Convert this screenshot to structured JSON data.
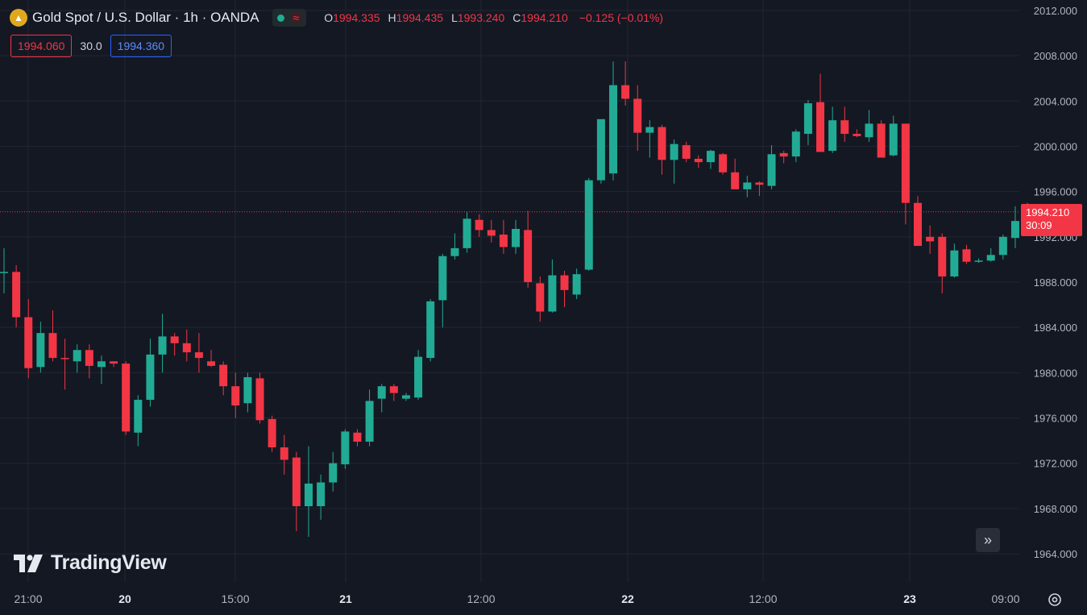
{
  "header": {
    "symbol_icon": "gold-bars-icon",
    "title": "Gold Spot / U.S. Dollar · 1h · OANDA",
    "status_icon": "market-open-dot-icon",
    "approx_icon": "approx-icon",
    "o_label": "O",
    "o_value": "1994.335",
    "h_label": "H",
    "h_value": "1994.435",
    "l_label": "L",
    "l_value": "1993.240",
    "c_label": "C",
    "c_value": "1994.210",
    "change": "−0.125 (−0.01%)"
  },
  "trade": {
    "sell": "1994.060",
    "spread": "30.0",
    "buy": "1994.360"
  },
  "price_tag": {
    "price": "1994.210",
    "countdown": "30:09"
  },
  "brand": {
    "name": "TradingView"
  },
  "colors": {
    "up": "#22ab94",
    "down": "#f23645",
    "background": "#141823",
    "grid": "#222632",
    "axis_text": "#b2b5be"
  },
  "chart_data": {
    "type": "candlestick",
    "title": "Gold Spot / U.S. Dollar · 1h · OANDA",
    "y_range": [
      1962.0,
      2013.0
    ],
    "y_ticks": [
      "2012.000",
      "2008.000",
      "2004.000",
      "2000.000",
      "1996.000",
      "1992.000",
      "1988.000",
      "1984.000",
      "1980.000",
      "1976.000",
      "1972.000",
      "1968.000",
      "1964.000"
    ],
    "x_ticks": [
      "21:00",
      "20",
      "15:00",
      "21",
      "12:00",
      "22",
      "12:00",
      "23",
      "09:00"
    ],
    "bold_x_ticks": [
      "20",
      "21",
      "22",
      "23"
    ],
    "last_price": 1994.21,
    "candles": [
      {
        "o": 1988.9,
        "h": 1991.0,
        "l": 1987.0,
        "c": 1988.9
      },
      {
        "o": 1988.9,
        "h": 1989.5,
        "l": 1984.0,
        "c": 1984.9
      },
      {
        "o": 1984.9,
        "h": 1986.5,
        "l": 1979.5,
        "c": 1980.4
      },
      {
        "o": 1980.5,
        "h": 1984.5,
        "l": 1980.0,
        "c": 1983.5
      },
      {
        "o": 1983.5,
        "h": 1985.5,
        "l": 1981.0,
        "c": 1981.3
      },
      {
        "o": 1981.3,
        "h": 1983.0,
        "l": 1978.5,
        "c": 1981.2
      },
      {
        "o": 1981.0,
        "h": 1982.5,
        "l": 1980.0,
        "c": 1982.0
      },
      {
        "o": 1982.0,
        "h": 1982.5,
        "l": 1979.5,
        "c": 1980.6
      },
      {
        "o": 1980.5,
        "h": 1981.5,
        "l": 1979.0,
        "c": 1981.0
      },
      {
        "o": 1981.0,
        "h": 1981.0,
        "l": 1980.5,
        "c": 1980.8
      },
      {
        "o": 1980.8,
        "h": 1981.0,
        "l": 1974.5,
        "c": 1974.8
      },
      {
        "o": 1974.7,
        "h": 1978.0,
        "l": 1973.5,
        "c": 1977.6
      },
      {
        "o": 1977.6,
        "h": 1983.0,
        "l": 1977.0,
        "c": 1981.6
      },
      {
        "o": 1981.6,
        "h": 1985.2,
        "l": 1980.0,
        "c": 1983.2
      },
      {
        "o": 1983.2,
        "h": 1983.5,
        "l": 1981.5,
        "c": 1982.6
      },
      {
        "o": 1982.6,
        "h": 1983.8,
        "l": 1981.0,
        "c": 1981.8
      },
      {
        "o": 1981.8,
        "h": 1983.5,
        "l": 1980.0,
        "c": 1981.3
      },
      {
        "o": 1981.0,
        "h": 1982.0,
        "l": 1980.5,
        "c": 1980.6
      },
      {
        "o": 1980.7,
        "h": 1981.0,
        "l": 1978.0,
        "c": 1978.8
      },
      {
        "o": 1978.8,
        "h": 1980.0,
        "l": 1976.0,
        "c": 1977.1
      },
      {
        "o": 1977.3,
        "h": 1980.0,
        "l": 1976.5,
        "c": 1979.6
      },
      {
        "o": 1979.5,
        "h": 1980.0,
        "l": 1975.5,
        "c": 1975.8
      },
      {
        "o": 1975.9,
        "h": 1976.2,
        "l": 1973.0,
        "c": 1973.4
      },
      {
        "o": 1973.4,
        "h": 1974.5,
        "l": 1971.0,
        "c": 1972.3
      },
      {
        "o": 1972.5,
        "h": 1973.0,
        "l": 1966.0,
        "c": 1968.2
      },
      {
        "o": 1968.2,
        "h": 1973.5,
        "l": 1965.5,
        "c": 1970.2
      },
      {
        "o": 1968.2,
        "h": 1971.0,
        "l": 1967.0,
        "c": 1970.3
      },
      {
        "o": 1970.3,
        "h": 1973.0,
        "l": 1969.5,
        "c": 1972.0
      },
      {
        "o": 1971.9,
        "h": 1975.0,
        "l": 1971.5,
        "c": 1974.8
      },
      {
        "o": 1974.7,
        "h": 1975.0,
        "l": 1973.5,
        "c": 1973.9
      },
      {
        "o": 1973.9,
        "h": 1978.5,
        "l": 1973.5,
        "c": 1977.5
      },
      {
        "o": 1977.7,
        "h": 1979.0,
        "l": 1976.5,
        "c": 1978.8
      },
      {
        "o": 1978.8,
        "h": 1979.0,
        "l": 1977.5,
        "c": 1978.2
      },
      {
        "o": 1977.7,
        "h": 1978.2,
        "l": 1977.5,
        "c": 1978.0
      },
      {
        "o": 1977.8,
        "h": 1982.0,
        "l": 1977.6,
        "c": 1981.4
      },
      {
        "o": 1981.3,
        "h": 1986.5,
        "l": 1981.0,
        "c": 1986.3
      },
      {
        "o": 1986.4,
        "h": 1990.5,
        "l": 1984.0,
        "c": 1990.3
      },
      {
        "o": 1990.3,
        "h": 1992.3,
        "l": 1990.0,
        "c": 1991.0
      },
      {
        "o": 1991.0,
        "h": 1994.2,
        "l": 1990.6,
        "c": 1993.6
      },
      {
        "o": 1993.5,
        "h": 1994.0,
        "l": 1992.0,
        "c": 1992.6
      },
      {
        "o": 1992.6,
        "h": 1993.5,
        "l": 1991.5,
        "c": 1992.1
      },
      {
        "o": 1992.2,
        "h": 1993.5,
        "l": 1990.5,
        "c": 1991.1
      },
      {
        "o": 1991.1,
        "h": 1993.5,
        "l": 1990.5,
        "c": 1992.7
      },
      {
        "o": 1992.6,
        "h": 1994.3,
        "l": 1987.5,
        "c": 1988.0
      },
      {
        "o": 1987.9,
        "h": 1988.5,
        "l": 1984.5,
        "c": 1985.4
      },
      {
        "o": 1985.4,
        "h": 1990.0,
        "l": 1985.3,
        "c": 1988.6
      },
      {
        "o": 1988.6,
        "h": 1989.0,
        "l": 1985.8,
        "c": 1987.3
      },
      {
        "o": 1986.9,
        "h": 1989.2,
        "l": 1986.5,
        "c": 1988.7
      },
      {
        "o": 1989.1,
        "h": 1997.2,
        "l": 1989.0,
        "c": 1997.0
      },
      {
        "o": 1997.0,
        "h": 2002.2,
        "l": 1996.7,
        "c": 2002.4
      },
      {
        "o": 1997.6,
        "h": 2007.5,
        "l": 1997.0,
        "c": 2005.4
      },
      {
        "o": 2005.4,
        "h": 2007.5,
        "l": 2003.6,
        "c": 2004.2
      },
      {
        "o": 2004.2,
        "h": 2005.4,
        "l": 1999.6,
        "c": 2001.2
      },
      {
        "o": 2001.2,
        "h": 2002.3,
        "l": 1999.0,
        "c": 2001.7
      },
      {
        "o": 2001.7,
        "h": 2001.9,
        "l": 1997.5,
        "c": 1998.8
      },
      {
        "o": 1998.8,
        "h": 2000.6,
        "l": 1996.7,
        "c": 2000.2
      },
      {
        "o": 2000.1,
        "h": 2000.4,
        "l": 1998.6,
        "c": 1998.9
      },
      {
        "o": 1998.9,
        "h": 1999.2,
        "l": 1998.1,
        "c": 1998.6
      },
      {
        "o": 1998.6,
        "h": 1999.7,
        "l": 1998.0,
        "c": 1999.6
      },
      {
        "o": 1999.3,
        "h": 1999.4,
        "l": 1997.5,
        "c": 1997.7
      },
      {
        "o": 1997.7,
        "h": 1998.9,
        "l": 1996.3,
        "c": 1996.2
      },
      {
        "o": 1996.2,
        "h": 1997.4,
        "l": 1995.5,
        "c": 1996.8
      },
      {
        "o": 1996.8,
        "h": 1996.9,
        "l": 1995.6,
        "c": 1996.6
      },
      {
        "o": 1996.5,
        "h": 2000.1,
        "l": 1996.2,
        "c": 1999.3
      },
      {
        "o": 1999.4,
        "h": 1999.6,
        "l": 1998.5,
        "c": 1999.1
      },
      {
        "o": 1999.1,
        "h": 2001.5,
        "l": 1998.6,
        "c": 2001.3
      },
      {
        "o": 2001.1,
        "h": 2004.1,
        "l": 2000.1,
        "c": 2003.8
      },
      {
        "o": 2003.9,
        "h": 2006.4,
        "l": 1999.5,
        "c": 1999.5
      },
      {
        "o": 1999.6,
        "h": 2003.5,
        "l": 1999.4,
        "c": 2002.3
      },
      {
        "o": 2002.3,
        "h": 2003.5,
        "l": 2000.4,
        "c": 2001.1
      },
      {
        "o": 2001.1,
        "h": 2001.5,
        "l": 2000.8,
        "c": 2000.9
      },
      {
        "o": 2000.8,
        "h": 2003.2,
        "l": 2000.4,
        "c": 2002.0
      },
      {
        "o": 2002.0,
        "h": 2002.3,
        "l": 1999.1,
        "c": 1999.0
      },
      {
        "o": 1999.2,
        "h": 2002.7,
        "l": 1999.1,
        "c": 2002.0
      },
      {
        "o": 2002.0,
        "h": 2002.0,
        "l": 1993.1,
        "c": 1995.0
      },
      {
        "o": 1995.0,
        "h": 1995.6,
        "l": 1991.3,
        "c": 1991.2
      },
      {
        "o": 1992.0,
        "h": 1993.0,
        "l": 1990.5,
        "c": 1991.6
      },
      {
        "o": 1992.0,
        "h": 1992.3,
        "l": 1987.0,
        "c": 1988.5
      },
      {
        "o": 1988.5,
        "h": 1991.4,
        "l": 1988.4,
        "c": 1990.8
      },
      {
        "o": 1990.9,
        "h": 1991.3,
        "l": 1989.6,
        "c": 1989.8
      },
      {
        "o": 1989.8,
        "h": 1990.1,
        "l": 1989.7,
        "c": 1989.9
      },
      {
        "o": 1989.9,
        "h": 1991.0,
        "l": 1989.8,
        "c": 1990.4
      },
      {
        "o": 1990.4,
        "h": 1992.2,
        "l": 1990.0,
        "c": 1992.0
      },
      {
        "o": 1991.9,
        "h": 1994.7,
        "l": 1991.0,
        "c": 1993.4
      },
      {
        "o": 1993.4,
        "h": 1995.0,
        "l": 1993.1,
        "c": 1994.1
      },
      {
        "o": 1994.3,
        "h": 1994.4,
        "l": 1993.2,
        "c": 1994.2
      }
    ]
  }
}
